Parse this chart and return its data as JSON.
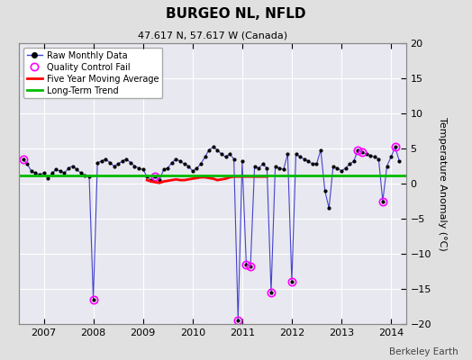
{
  "title": "BURGEO NL, NFLD",
  "subtitle": "47.617 N, 57.617 W (Canada)",
  "ylabel": "Temperature Anomaly (°C)",
  "watermark": "Berkeley Earth",
  "ylim": [
    -20,
    20
  ],
  "yticks": [
    -20,
    -15,
    -10,
    -5,
    0,
    5,
    10,
    15,
    20
  ],
  "xlim_start": 2006.5,
  "xlim_end": 2014.3,
  "xticks": [
    2007,
    2008,
    2009,
    2010,
    2011,
    2012,
    2013,
    2014
  ],
  "long_term_trend_value": 1.2,
  "bg_color": "#e0e0e0",
  "plot_bg_color": "#e8e8f0",
  "raw_line_color": "#4444cc",
  "raw_marker_color": "#000000",
  "qc_fail_color": "#ff00ff",
  "moving_avg_color": "#ff0000",
  "trend_color": "#00bb00",
  "raw_data": [
    [
      2006.583,
      3.5
    ],
    [
      2006.667,
      2.8
    ],
    [
      2006.75,
      1.8
    ],
    [
      2006.833,
      1.5
    ],
    [
      2006.917,
      1.3
    ],
    [
      2007.0,
      1.5
    ],
    [
      2007.083,
      0.8
    ],
    [
      2007.167,
      1.5
    ],
    [
      2007.25,
      2.0
    ],
    [
      2007.333,
      1.8
    ],
    [
      2007.417,
      1.5
    ],
    [
      2007.5,
      2.2
    ],
    [
      2007.583,
      2.5
    ],
    [
      2007.667,
      2.0
    ],
    [
      2007.75,
      1.5
    ],
    [
      2007.833,
      1.2
    ],
    [
      2007.917,
      1.0
    ],
    [
      2008.0,
      -16.5
    ],
    [
      2008.083,
      3.0
    ],
    [
      2008.167,
      3.2
    ],
    [
      2008.25,
      3.5
    ],
    [
      2008.333,
      3.0
    ],
    [
      2008.417,
      2.5
    ],
    [
      2008.5,
      2.8
    ],
    [
      2008.583,
      3.2
    ],
    [
      2008.667,
      3.5
    ],
    [
      2008.75,
      3.0
    ],
    [
      2008.833,
      2.5
    ],
    [
      2008.917,
      2.2
    ],
    [
      2009.0,
      2.0
    ],
    [
      2009.083,
      1.0
    ],
    [
      2009.167,
      0.5
    ],
    [
      2009.25,
      1.0
    ],
    [
      2009.333,
      0.5
    ],
    [
      2009.417,
      2.0
    ],
    [
      2009.5,
      2.2
    ],
    [
      2009.583,
      3.0
    ],
    [
      2009.667,
      3.5
    ],
    [
      2009.75,
      3.2
    ],
    [
      2009.833,
      2.8
    ],
    [
      2009.917,
      2.5
    ],
    [
      2010.0,
      1.8
    ],
    [
      2010.083,
      2.2
    ],
    [
      2010.167,
      2.8
    ],
    [
      2010.25,
      3.8
    ],
    [
      2010.333,
      4.8
    ],
    [
      2010.417,
      5.2
    ],
    [
      2010.5,
      4.8
    ],
    [
      2010.583,
      4.2
    ],
    [
      2010.667,
      3.8
    ],
    [
      2010.75,
      4.2
    ],
    [
      2010.833,
      3.5
    ],
    [
      2010.917,
      -19.5
    ],
    [
      2011.0,
      3.2
    ],
    [
      2011.083,
      -11.5
    ],
    [
      2011.167,
      -11.8
    ],
    [
      2011.25,
      2.5
    ],
    [
      2011.333,
      2.2
    ],
    [
      2011.417,
      2.8
    ],
    [
      2011.5,
      2.2
    ],
    [
      2011.583,
      -15.5
    ],
    [
      2011.667,
      2.5
    ],
    [
      2011.75,
      2.2
    ],
    [
      2011.833,
      2.0
    ],
    [
      2011.917,
      4.2
    ],
    [
      2012.0,
      -14.0
    ],
    [
      2012.083,
      4.2
    ],
    [
      2012.167,
      3.8
    ],
    [
      2012.25,
      3.5
    ],
    [
      2012.333,
      3.2
    ],
    [
      2012.417,
      2.8
    ],
    [
      2012.5,
      2.8
    ],
    [
      2012.583,
      4.8
    ],
    [
      2012.667,
      -1.0
    ],
    [
      2012.75,
      -3.5
    ],
    [
      2012.833,
      2.5
    ],
    [
      2012.917,
      2.2
    ],
    [
      2013.0,
      1.8
    ],
    [
      2013.083,
      2.2
    ],
    [
      2013.167,
      2.8
    ],
    [
      2013.25,
      3.2
    ],
    [
      2013.333,
      4.8
    ],
    [
      2013.417,
      4.5
    ],
    [
      2013.5,
      4.2
    ],
    [
      2013.583,
      4.0
    ],
    [
      2013.667,
      3.8
    ],
    [
      2013.75,
      3.5
    ],
    [
      2013.833,
      -2.5
    ],
    [
      2013.917,
      2.5
    ],
    [
      2014.0,
      3.8
    ],
    [
      2014.083,
      5.2
    ],
    [
      2014.167,
      3.2
    ]
  ],
  "qc_fail_points": [
    [
      2006.583,
      3.5
    ],
    [
      2008.0,
      -16.5
    ],
    [
      2009.25,
      1.0
    ],
    [
      2010.917,
      -19.5
    ],
    [
      2011.083,
      -11.5
    ],
    [
      2011.167,
      -11.8
    ],
    [
      2011.583,
      -15.5
    ],
    [
      2012.0,
      -14.0
    ],
    [
      2013.333,
      4.8
    ],
    [
      2013.417,
      4.5
    ],
    [
      2013.833,
      -2.5
    ],
    [
      2014.083,
      5.2
    ]
  ],
  "moving_avg": [
    [
      2009.083,
      0.5
    ],
    [
      2009.167,
      0.3
    ],
    [
      2009.25,
      0.2
    ],
    [
      2009.333,
      0.1
    ],
    [
      2009.417,
      0.3
    ],
    [
      2009.5,
      0.4
    ],
    [
      2009.583,
      0.5
    ],
    [
      2009.667,
      0.6
    ],
    [
      2009.75,
      0.5
    ],
    [
      2009.833,
      0.5
    ],
    [
      2009.917,
      0.6
    ],
    [
      2010.0,
      0.7
    ],
    [
      2010.083,
      0.8
    ],
    [
      2010.167,
      0.9
    ],
    [
      2010.25,
      0.9
    ],
    [
      2010.333,
      0.8
    ],
    [
      2010.417,
      0.7
    ],
    [
      2010.5,
      0.5
    ],
    [
      2010.583,
      0.6
    ],
    [
      2010.667,
      0.7
    ],
    [
      2010.75,
      0.9
    ],
    [
      2010.833,
      1.0
    ],
    [
      2010.917,
      1.0
    ],
    [
      2011.0,
      1.0
    ],
    [
      2011.083,
      1.0
    ],
    [
      2011.167,
      1.0
    ],
    [
      2011.25,
      1.0
    ],
    [
      2011.333,
      1.0
    ],
    [
      2011.417,
      1.0
    ],
    [
      2011.5,
      1.0
    ]
  ]
}
